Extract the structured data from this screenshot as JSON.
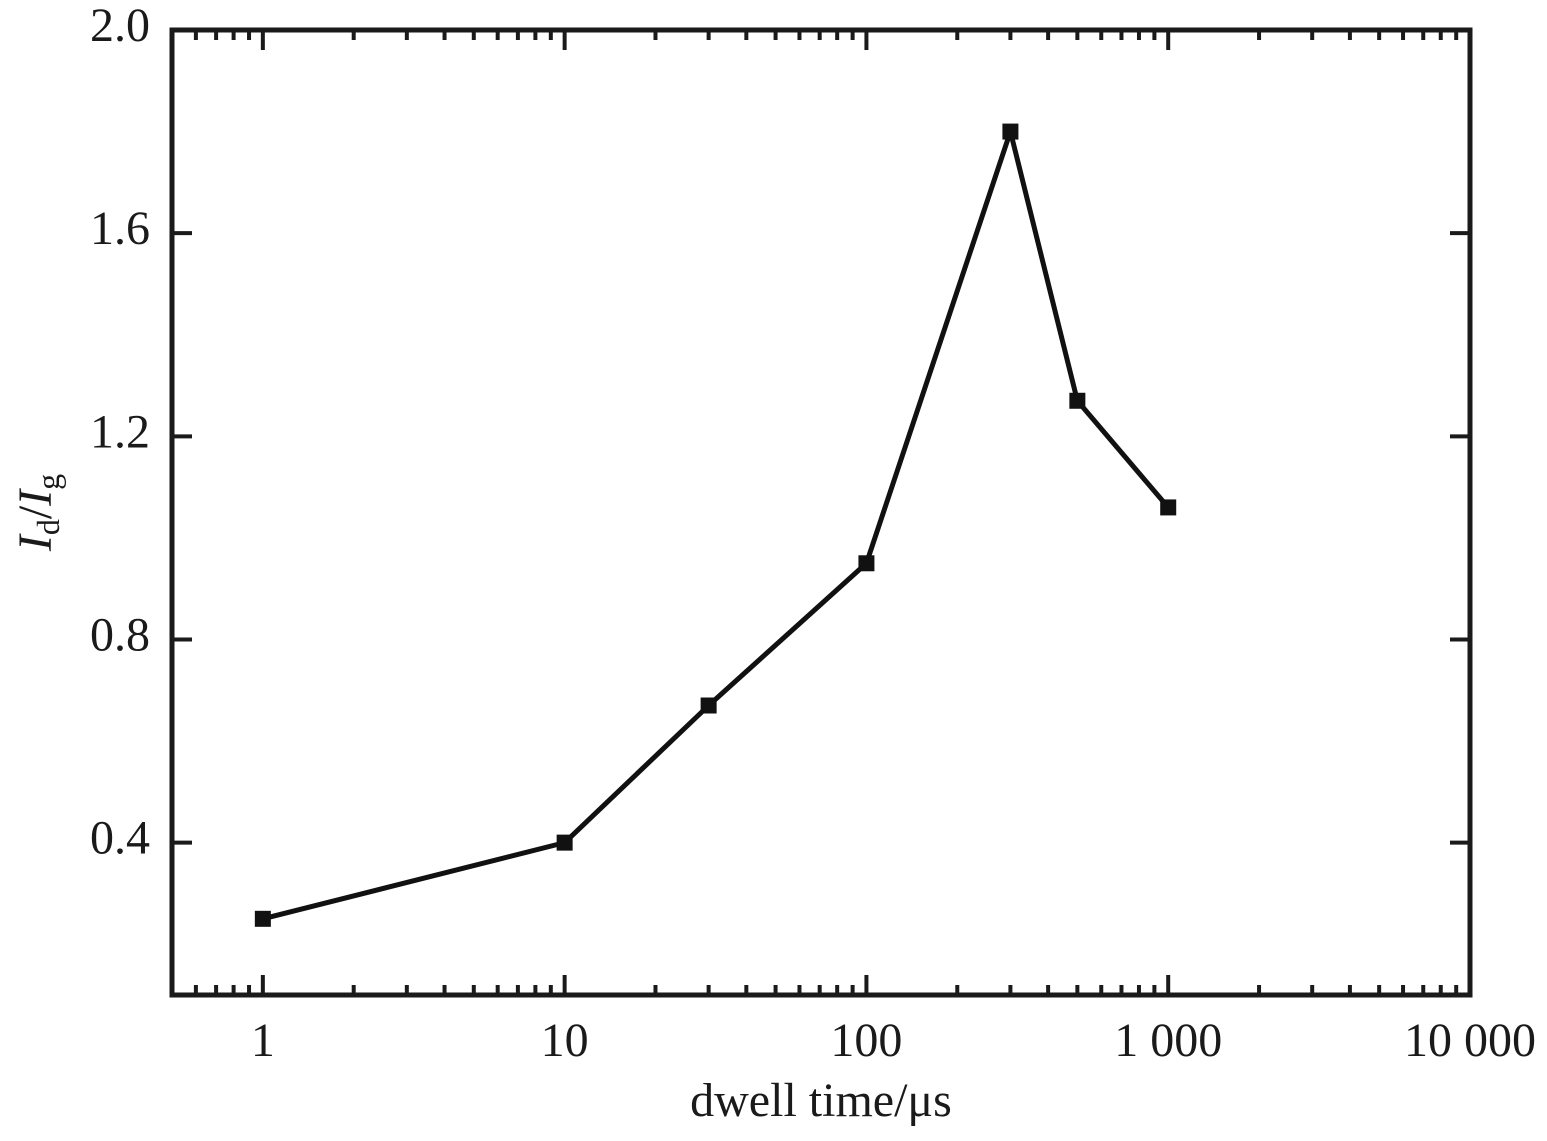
{
  "chart_data": {
    "type": "line",
    "xlabel": "dwell time/μs",
    "ylabel_parts": [
      "I",
      "d",
      "/",
      "I",
      "g"
    ],
    "x": [
      1,
      10,
      30,
      100,
      300,
      500,
      1000
    ],
    "series": [
      {
        "color": "#111111",
        "values": [
          0.25,
          0.4,
          0.67,
          0.95,
          1.8,
          1.27,
          1.06
        ]
      }
    ],
    "xscale": "log",
    "xlim": [
      0.5,
      10000
    ],
    "xticks": [
      1,
      10,
      100,
      {
        "value": 1000,
        "label": "1 000"
      },
      {
        "value": 10000,
        "label": "10 000"
      }
    ],
    "ylim": [
      0.1,
      2.0
    ],
    "yticks": [
      0.4,
      0.8,
      1.2,
      1.6,
      {
        "value": 2.0,
        "label": "2.0"
      }
    ],
    "minor_ticks": true,
    "grid": false
  }
}
